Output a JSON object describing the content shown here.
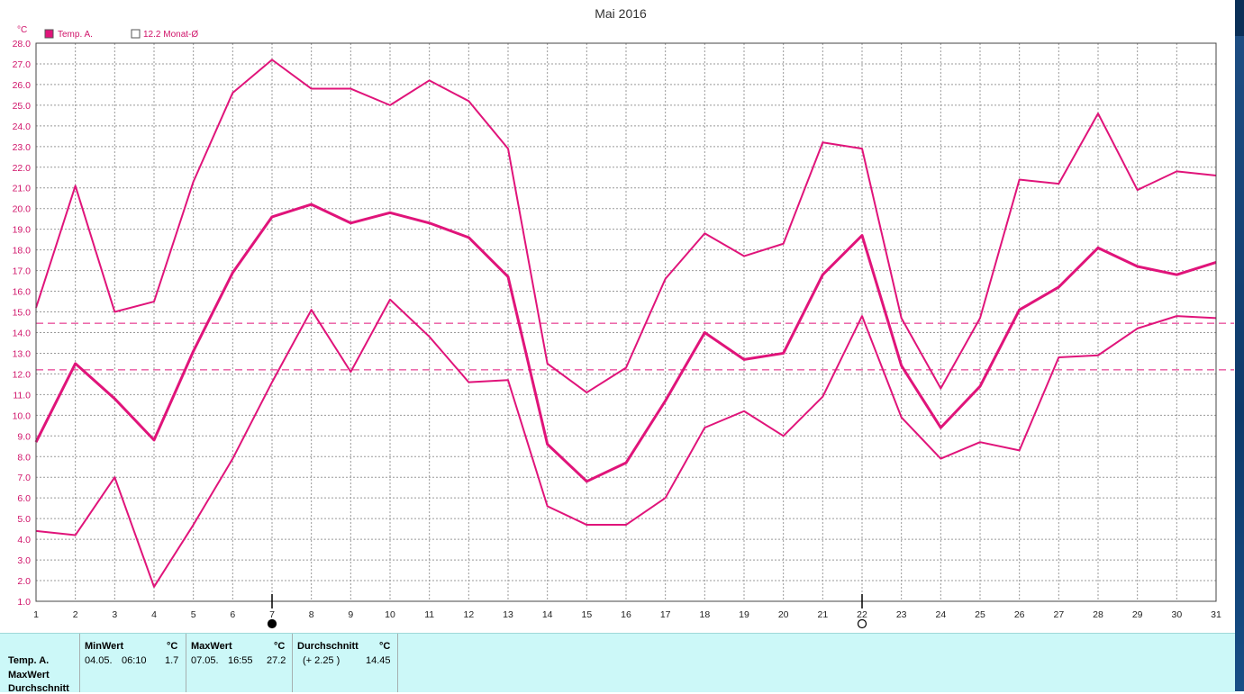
{
  "chart_data": {
    "type": "line",
    "title": "Mai 2016",
    "y_unit": "°C",
    "ylim": [
      1.0,
      28.0
    ],
    "y_ticks": [
      "28.0",
      "27.0",
      "26.0",
      "25.0",
      "24.0",
      "23.0",
      "22.0",
      "21.0",
      "20.0",
      "19.0",
      "18.0",
      "17.0",
      "16.0",
      "15.0",
      "14.0",
      "13.0",
      "12.0",
      "11.0",
      "10.0",
      "9.0",
      "8.0",
      "7.0",
      "6.0",
      "5.0",
      "4.0",
      "3.0",
      "2.0",
      "1.0"
    ],
    "x": [
      1,
      2,
      3,
      4,
      5,
      6,
      7,
      8,
      9,
      10,
      11,
      12,
      13,
      14,
      15,
      16,
      17,
      18,
      19,
      20,
      21,
      22,
      23,
      24,
      25,
      26,
      27,
      28,
      29,
      30,
      31
    ],
    "x_ticks": [
      "1",
      "2",
      "3",
      "4",
      "5",
      "6",
      "7",
      "8",
      "9",
      "10",
      "11",
      "12",
      "13",
      "14",
      "15",
      "16",
      "17",
      "18",
      "19",
      "20",
      "21",
      "22",
      "23",
      "24",
      "25",
      "26",
      "27",
      "28",
      "29",
      "30",
      "31"
    ],
    "grid": true,
    "legend": [
      {
        "label": "Temp. A.",
        "filled": true
      },
      {
        "label": "12.2 Monat-Ø",
        "filled": false
      }
    ],
    "series": [
      {
        "role": "max",
        "values": [
          15.2,
          21.1,
          15.0,
          15.5,
          21.3,
          25.6,
          27.2,
          25.8,
          25.8,
          25.0,
          26.2,
          25.2,
          22.9,
          12.5,
          11.1,
          12.3,
          16.6,
          18.8,
          17.7,
          18.3,
          23.2,
          22.9,
          14.7,
          11.3,
          14.7,
          21.4,
          21.2,
          24.6,
          20.9,
          21.8,
          21.6
        ]
      },
      {
        "role": "avg",
        "values": [
          8.7,
          12.5,
          10.8,
          8.8,
          13.1,
          16.9,
          19.6,
          20.2,
          19.3,
          19.8,
          19.3,
          18.6,
          16.7,
          8.6,
          6.8,
          7.7,
          10.7,
          14.0,
          12.7,
          13.0,
          16.8,
          18.7,
          12.4,
          9.4,
          11.4,
          15.1,
          16.2,
          18.1,
          17.2,
          16.8,
          17.4
        ]
      },
      {
        "role": "min",
        "values": [
          4.4,
          4.2,
          7.0,
          1.7,
          4.7,
          7.9,
          11.6,
          15.1,
          12.1,
          15.6,
          13.8,
          11.6,
          11.7,
          5.6,
          4.7,
          4.7,
          6.0,
          9.4,
          10.2,
          9.0,
          10.9,
          14.8,
          9.9,
          7.9,
          8.7,
          8.3,
          12.8,
          12.9,
          14.2,
          14.8,
          14.7
        ]
      }
    ],
    "reference_lines": [
      {
        "value": 14.45,
        "style": "dashed"
      },
      {
        "value": 12.2,
        "style": "dashed"
      }
    ],
    "moon_markers": [
      {
        "day": 7,
        "phase": "new"
      },
      {
        "day": 22,
        "phase": "full"
      }
    ],
    "colors": {
      "series": "#e0147a",
      "axis_text": "#d0146a",
      "grid": "#999999",
      "panel": "#ccf8f8"
    }
  },
  "stats": {
    "row_labels": [
      "Temp. A.",
      "MaxWert",
      "Durchschnitt"
    ],
    "min": {
      "header": "MinWert",
      "unit": "°C",
      "date": "04.05.",
      "time": "06:10",
      "value": "1.7"
    },
    "max": {
      "header": "MaxWert",
      "unit": "°C",
      "date": "07.05.",
      "time": "16:55",
      "value": "27.2"
    },
    "avg": {
      "header": "Durchschnitt",
      "unit": "°C",
      "delta": "(+ 2.25 )",
      "value": "14.45"
    }
  }
}
